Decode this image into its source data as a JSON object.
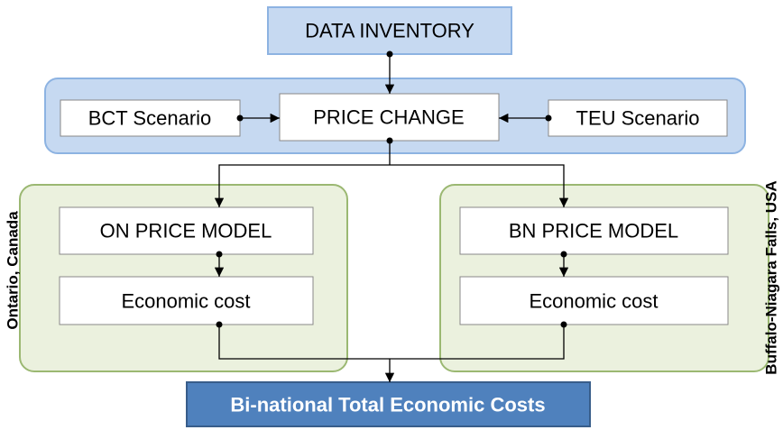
{
  "nodes": [
    {
      "label": "DATA INVENTORY"
    },
    {
      "label": "BCT Scenario"
    },
    {
      "label": "PRICE CHANGE"
    },
    {
      "label": "TEU Scenario"
    },
    {
      "label": "ON PRICE MODEL"
    },
    {
      "label": "Economic cost"
    },
    {
      "label": "BN PRICE MODEL"
    },
    {
      "label": "Economic cost"
    },
    {
      "label": "Bi-national Total Economic Costs"
    }
  ],
  "side_labels": {
    "left": "Ontario, Canada",
    "right": "Buffalo-Niagara Falls, USA"
  }
}
